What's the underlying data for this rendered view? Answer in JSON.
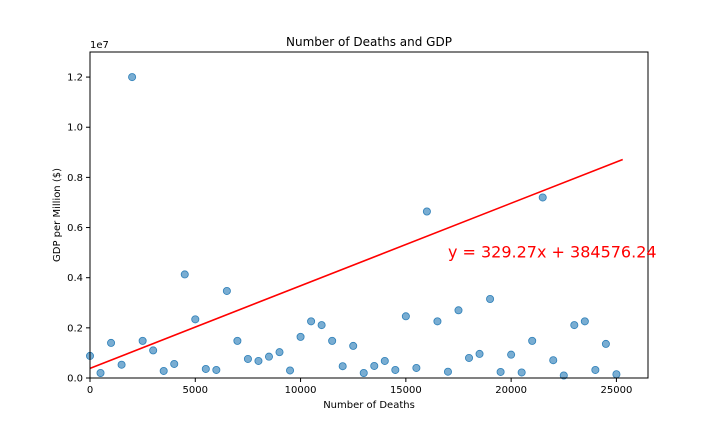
{
  "chart_data": {
    "type": "scatter",
    "title": "Number of Deaths and GDP",
    "xlabel": "Number of Deaths",
    "ylabel": "GDP per Million ($)",
    "xlim": [
      0,
      26500
    ],
    "ylim": [
      0,
      13000000
    ],
    "x_ticks": [
      0,
      5000,
      10000,
      15000,
      20000,
      25000
    ],
    "x_tick_labels": [
      "0",
      "5000",
      "10000",
      "15000",
      "20000",
      "25000"
    ],
    "y_ticks": [
      0,
      2000000,
      4000000,
      6000000,
      8000000,
      10000000,
      12000000
    ],
    "y_tick_labels": [
      "0.0",
      "0.2",
      "0.4",
      "0.6",
      "0.8",
      "1.0",
      "1.2"
    ],
    "y_offset_label": "1e7",
    "grid": false,
    "point_color": "#1f77b4",
    "line_color": "#ff0000",
    "series": [
      {
        "name": "countries",
        "x": [
          0,
          500,
          1000,
          1500,
          2000,
          2500,
          3000,
          3500,
          4000,
          4500,
          5000,
          5500,
          6000,
          6500,
          7000,
          7500,
          8000,
          8500,
          9000,
          9500,
          10000,
          10500,
          11000,
          11500,
          12000,
          12500,
          13000,
          13500,
          14000,
          14500,
          15000,
          15500,
          16000,
          16500,
          17000,
          17500,
          18000,
          18500,
          19000,
          19500,
          20000,
          20500,
          21000,
          21500,
          22000,
          22500,
          23000,
          23500,
          24000,
          24500,
          25000
        ],
        "y": [
          880000,
          200000,
          1400000,
          530000,
          12000000,
          1480000,
          1100000,
          280000,
          560000,
          4130000,
          2340000,
          360000,
          320000,
          3470000,
          1480000,
          760000,
          680000,
          850000,
          1030000,
          300000,
          1640000,
          2260000,
          2110000,
          1480000,
          470000,
          1280000,
          200000,
          480000,
          680000,
          320000,
          2460000,
          400000,
          6640000,
          2260000,
          250000,
          2700000,
          800000,
          960000,
          3150000,
          240000,
          930000,
          220000,
          1480000,
          7200000,
          710000,
          100000,
          2110000,
          2260000,
          320000,
          1360000,
          150000
        ]
      }
    ],
    "regression": {
      "slope": 329.27,
      "intercept": 384576.24,
      "x_range": [
        0,
        25300
      ],
      "equation_label": "y = 329.27x + 384576.24",
      "label_anchor": [
        17000,
        5000000
      ]
    }
  }
}
